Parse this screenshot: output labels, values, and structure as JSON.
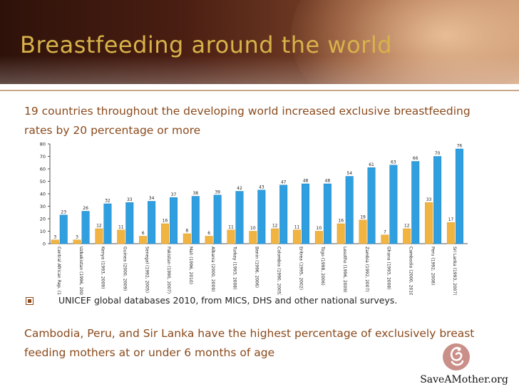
{
  "slide": {
    "title": "Breastfeeding around the world",
    "intro": "19 countries throughout the developing world increased exclusive breastfeeding rates by 20 percentage or more",
    "source": "UNICEF global databases 2010, from MICS, DHS and other national surveys.",
    "outro": "Cambodia, Peru, and Sir Lanka have the highest percentage of exclusively breast feeding mothers at or under 6 months of age",
    "logo_text": "SaveAMother.org"
  },
  "colors": {
    "title": "#d8b24a",
    "text": "#8a4a1c",
    "series_early": "#f2b441",
    "series_late": "#2f9fe0"
  },
  "icons": [
    "square-bullet-icon",
    "mother-child-logo-icon"
  ],
  "chart_data": {
    "type": "bar",
    "ylim": [
      0,
      80
    ],
    "yticks": [
      0,
      10,
      20,
      30,
      40,
      50,
      60,
      70,
      80
    ],
    "grid": false,
    "categories": [
      "Central African Rep. (1995, 2010)",
      "Uzbekistan (1996, 2006)",
      "Kenya (1993, 2009)",
      "Guinea (2000, 2009)",
      "Senegal (1992, 2005)",
      "Pakistan (1990, 2007)",
      "Mali (1996, 2010)",
      "Albania (2000, 2009)",
      "Turkey (1993, 2008)",
      "Benin (1996, 2006)",
      "Colombia (1990, 2005)",
      "Eritrea (1995, 2002)",
      "Togo (1998, 2006)",
      "Lesotho (1996, 2009)",
      "Zambia (1992, 2007)",
      "Ghana (1993, 2008)",
      "Cambodia (2000, 2010)",
      "Peru (1992, 2008)",
      "Sri Lanka (1993, 2007)"
    ],
    "series": [
      {
        "values": [
          3,
          3,
          12,
          11,
          6,
          16,
          8,
          6,
          11,
          10,
          12,
          11,
          10,
          16,
          19,
          7,
          12,
          33,
          17
        ]
      },
      {
        "values": [
          23,
          26,
          32,
          33,
          34,
          37,
          38,
          39,
          42,
          43,
          47,
          48,
          48,
          54,
          61,
          63,
          66,
          70,
          76
        ]
      }
    ]
  }
}
